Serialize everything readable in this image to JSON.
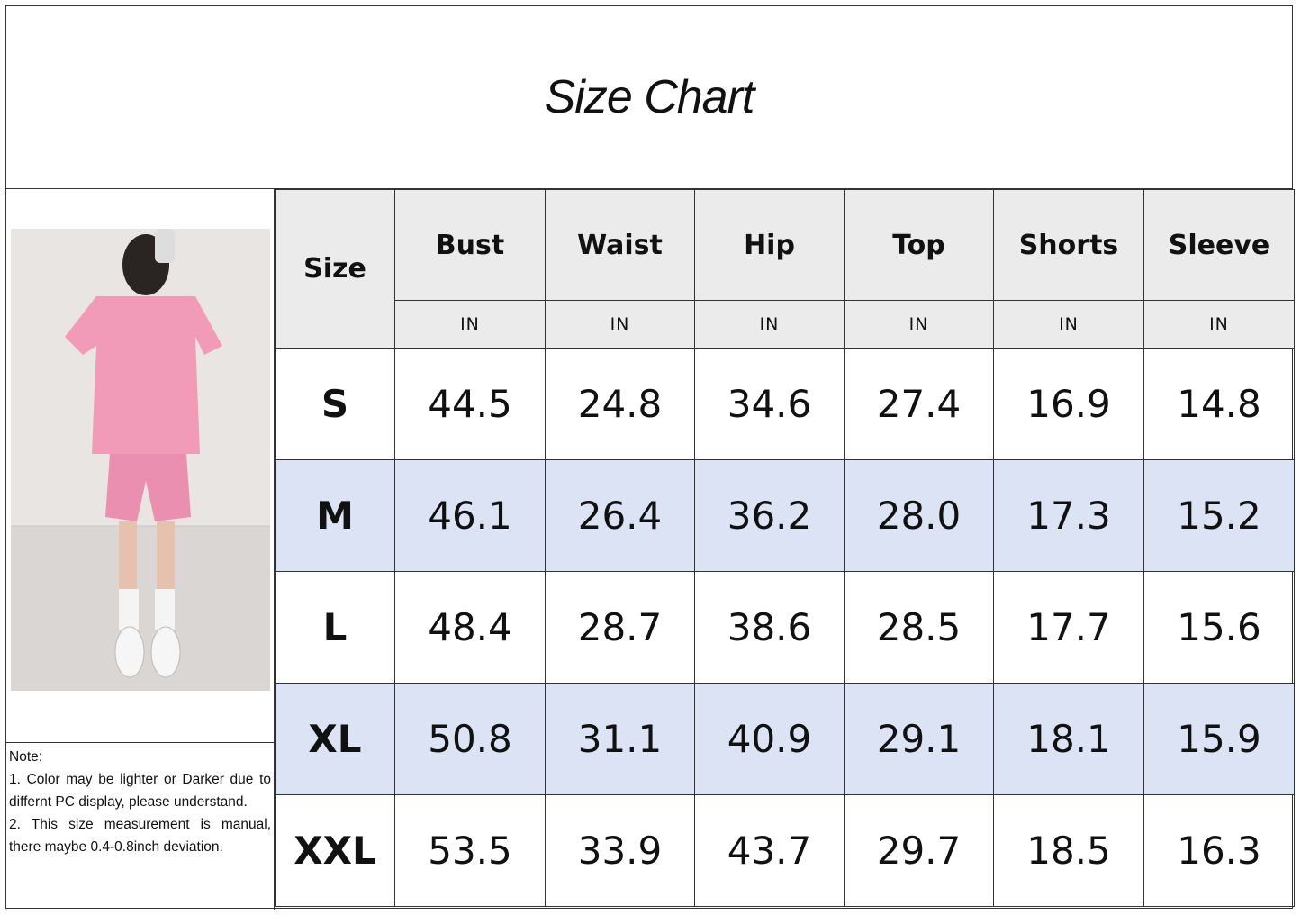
{
  "title": "Size Chart",
  "colors": {
    "header_bg": "#ebebeb",
    "alt_row_bg": "#dbe3f4",
    "garment": "#f19bb8"
  },
  "note": {
    "heading": "Note:",
    "line1": "1. Color may be lighter or Darker due to differnt PC display, please understand.",
    "line2": "2. This size measurement is manual, there maybe 0.4-0.8inch deviation."
  },
  "table": {
    "size_header": "Size",
    "columns": [
      "Bust",
      "Waist",
      "Hip",
      "Top",
      "Shorts",
      "Sleeve"
    ],
    "units": [
      "IN",
      "IN",
      "IN",
      "IN",
      "IN",
      "IN"
    ],
    "rows": [
      {
        "size": "S",
        "values": [
          "44.5",
          "24.8",
          "34.6",
          "27.4",
          "16.9",
          "14.8"
        ]
      },
      {
        "size": "M",
        "values": [
          "46.1",
          "26.4",
          "36.2",
          "28.0",
          "17.3",
          "15.2"
        ]
      },
      {
        "size": "L",
        "values": [
          "48.4",
          "28.7",
          "38.6",
          "28.5",
          "17.7",
          "15.6"
        ]
      },
      {
        "size": "XL",
        "values": [
          "50.8",
          "31.1",
          "40.9",
          "29.1",
          "18.1",
          "15.9"
        ]
      },
      {
        "size": "XXL",
        "values": [
          "53.5",
          "33.9",
          "43.7",
          "29.7",
          "18.5",
          "16.3"
        ]
      }
    ]
  }
}
